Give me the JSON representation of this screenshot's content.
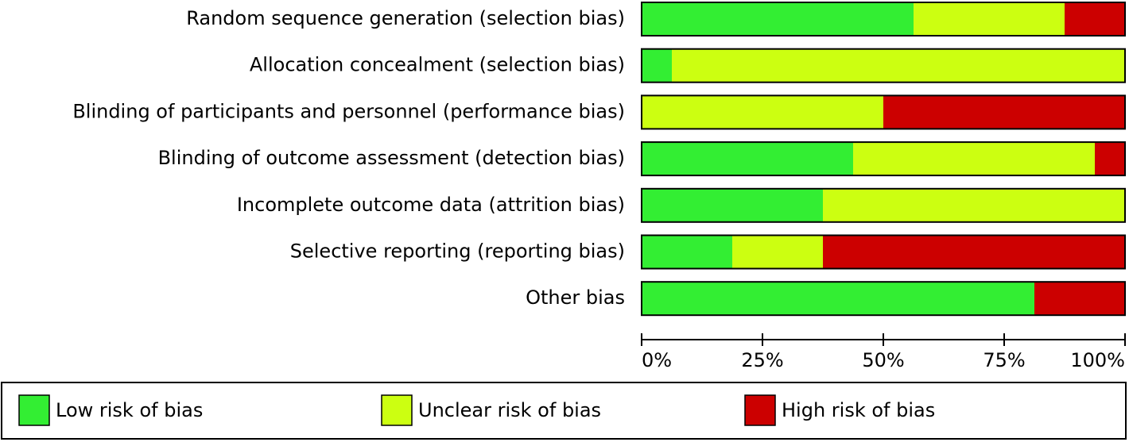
{
  "chart_data": {
    "type": "stacked-hbar",
    "categories": [
      "Random sequence generation (selection bias)",
      "Allocation concealment (selection bias)",
      "Blinding of participants and personnel (performance bias)",
      "Blinding of outcome assessment (detection bias)",
      "Incomplete outcome data (attrition bias)",
      "Selective reporting (reporting bias)",
      "Other bias"
    ],
    "series": [
      {
        "name": "Low risk of bias",
        "color": "#33ee33",
        "values": [
          56.25,
          6.25,
          0,
          43.75,
          37.5,
          18.75,
          81.25
        ]
      },
      {
        "name": "Unclear risk of bias",
        "color": "#ccff11",
        "values": [
          31.25,
          93.75,
          50,
          50,
          62.5,
          18.75,
          0
        ]
      },
      {
        "name": "High risk of bias",
        "color": "#cc0000",
        "values": [
          12.5,
          0,
          50,
          6.25,
          0,
          62.5,
          18.75
        ]
      }
    ],
    "xlim": [
      0,
      100
    ],
    "xticks": [
      {
        "value": 0,
        "label": "0%"
      },
      {
        "value": 25,
        "label": "25%"
      },
      {
        "value": 50,
        "label": "50%"
      },
      {
        "value": 75,
        "label": "75%"
      },
      {
        "value": 100,
        "label": "100%"
      }
    ]
  }
}
